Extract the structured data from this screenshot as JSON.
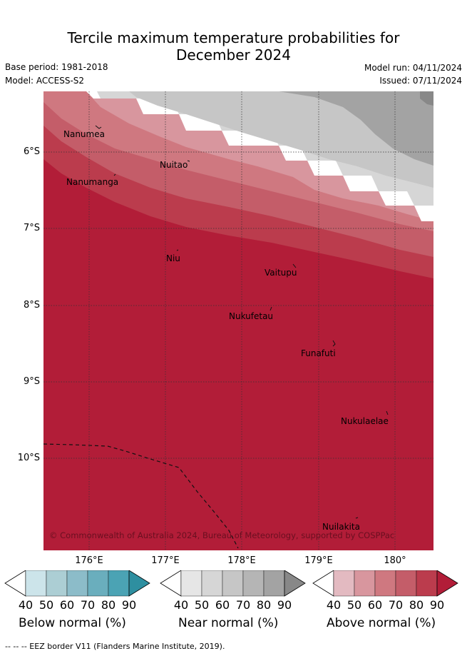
{
  "title_line1": "Tercile maximum temperature probabilities for",
  "title_line2": "December 2024",
  "base_period": "Base period: 1981-2018",
  "model": "Model: ACCESS-S2",
  "model_run": "Model run: 04/11/2024",
  "issued": "Issued: 07/11/2024",
  "lat_labels": [
    "6°S",
    "7°S",
    "8°S",
    "9°S",
    "10°S"
  ],
  "lon_labels": [
    "176°E",
    "177°E",
    "178°E",
    "179°E",
    "180°"
  ],
  "places": [
    "Nanumea",
    "Nuitao",
    "Nanumanga",
    "Niu",
    "Vaitupu",
    "Nukufetau",
    "Funafuti",
    "Nukulaelae",
    "Nuilakita"
  ],
  "copyright": "© Commonwealth of Australia 2024, Bureau of Meteorology, supported by COSPPac",
  "colorbars": [
    {
      "label": "Below normal (%)",
      "ticks": [
        "40",
        "50",
        "60",
        "70",
        "80",
        "90"
      ],
      "colors": [
        "#ffffff",
        "#cce4ea",
        "#acced4",
        "#8cbcc9",
        "#6aaebd",
        "#4ba3b4",
        "#2e8fa0"
      ]
    },
    {
      "label": "Near normal (%)",
      "ticks": [
        "40",
        "50",
        "60",
        "70",
        "80",
        "90"
      ],
      "colors": [
        "#ffffff",
        "#e6e6e6",
        "#d6d6d6",
        "#c6c6c6",
        "#b5b5b5",
        "#a3a3a3",
        "#888888"
      ]
    },
    {
      "label": "Above normal (%)",
      "ticks": [
        "40",
        "50",
        "60",
        "70",
        "80",
        "90"
      ],
      "colors": [
        "#ffffff",
        "#e3bac1",
        "#d8969e",
        "#cf7880",
        "#c45d69",
        "#bb3c4d",
        "#b21d38"
      ]
    }
  ],
  "footer": "--  --  -- EEZ border V11 (Flanders Marine Institute, 2019)."
}
